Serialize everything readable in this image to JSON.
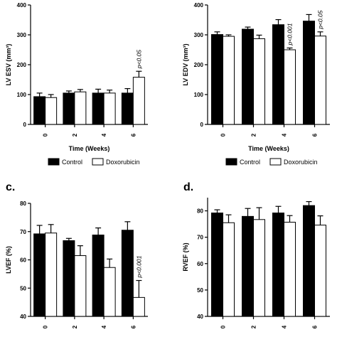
{
  "figure": {
    "legend": {
      "control": "Control",
      "doxorubicin": "Doxorubicin"
    },
    "colors": {
      "control": "#000000",
      "doxorubicin": "#ffffff",
      "axis": "#000000"
    }
  },
  "chart_data": [
    {
      "type": "bar",
      "panel_letter": "",
      "title": "",
      "categories": [
        "0",
        "2",
        "4",
        "6"
      ],
      "series": [
        {
          "name": "Control",
          "values": [
            93,
            105,
            105,
            105
          ],
          "errors": [
            12,
            7,
            13,
            15
          ]
        },
        {
          "name": "Doxorubicin",
          "values": [
            90,
            109,
            105,
            158
          ],
          "errors": [
            10,
            8,
            10,
            20
          ]
        }
      ],
      "ylabel": "LV ESV (mm³)",
      "xlabel": "Time (Weeks)",
      "ylim": [
        0,
        400
      ],
      "yticks": [
        "0",
        "100",
        "200",
        "300",
        "400"
      ],
      "annotations": [
        {
          "category_index": 3,
          "text": "p<0.05"
        }
      ],
      "legend": "bottom"
    },
    {
      "type": "bar",
      "panel_letter": "",
      "title": "",
      "categories": [
        "0",
        "2",
        "4",
        "6"
      ],
      "series": [
        {
          "name": "Control",
          "values": [
            301,
            319,
            334,
            346
          ],
          "errors": [
            9,
            7,
            17,
            22
          ]
        },
        {
          "name": "Doxorubicin",
          "values": [
            295,
            287,
            250,
            296
          ],
          "errors": [
            5,
            12,
            6,
            14
          ]
        }
      ],
      "ylabel": "LV EDV (mm³)",
      "xlabel": "Time (Weeks)",
      "ylim": [
        0,
        400
      ],
      "yticks": [
        "0",
        "100",
        "200",
        "300",
        "400"
      ],
      "annotations": [
        {
          "category_index": 2,
          "text": "p<0.001"
        },
        {
          "category_index": 3,
          "text": "p<0.05"
        }
      ],
      "legend": "bottom"
    },
    {
      "type": "bar",
      "panel_letter": "c.",
      "title": "",
      "categories": [
        "0",
        "2",
        "4",
        "6"
      ],
      "series": [
        {
          "name": "Control",
          "values": [
            69.2,
            66.8,
            68.8,
            70.5
          ],
          "errors": [
            3,
            0.8,
            2.5,
            3
          ]
        },
        {
          "name": "Doxorubicin",
          "values": [
            69.5,
            61.5,
            57.3,
            46.7
          ],
          "errors": [
            3,
            3.5,
            3,
            6
          ]
        }
      ],
      "ylabel": "LVEF (%)",
      "xlabel": "",
      "ylim": [
        40,
        80
      ],
      "yticks": [
        "40",
        "50",
        "60",
        "70",
        "80"
      ],
      "annotations": [
        {
          "category_index": 3,
          "text": "p<0.001"
        }
      ],
      "legend": "none"
    },
    {
      "type": "bar",
      "panel_letter": "d.",
      "title": "",
      "categories": [
        "0",
        "2",
        "4",
        "6"
      ],
      "series": [
        {
          "name": "Control",
          "values": [
            79.2,
            77.9,
            79.2,
            82.0
          ],
          "errors": [
            1.2,
            3.0,
            2.5,
            1.5
          ]
        },
        {
          "name": "Doxorubicin",
          "values": [
            75.5,
            76.7,
            75.7,
            74.6
          ],
          "errors": [
            3.0,
            4.5,
            2.5,
            3.5
          ]
        }
      ],
      "ylabel": "RVEF (%)",
      "xlabel": "",
      "ylim": [
        40,
        85
      ],
      "yticks": [
        "40",
        "50",
        "60",
        "70",
        "80"
      ],
      "annotations": [],
      "legend": "none"
    }
  ]
}
